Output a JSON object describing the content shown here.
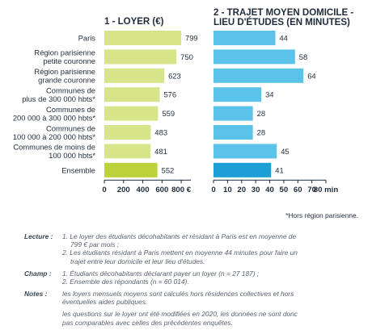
{
  "chart_data": [
    {
      "type": "bar",
      "orientation": "horizontal",
      "title": "1 - LOYER (€)",
      "categories": [
        "Paris",
        "Région parisienne petite couronne",
        "Région parisienne grande couronne",
        "Communes de plus de 300 000 hbts*",
        "Communes de 200 000 à 300 000 hbts*",
        "Communes de 100 000 à 200 000 hbts*",
        "Communes de moins de 100 000 hbts*",
        "Ensemble"
      ],
      "values": [
        799,
        750,
        623,
        576,
        559,
        483,
        481,
        552
      ],
      "xlim": [
        0,
        900
      ],
      "ticks": [
        "0",
        "200",
        "400",
        "600",
        "800 €"
      ],
      "tick_values": [
        0,
        200,
        400,
        600,
        800
      ],
      "bar_color": "#d7e48a",
      "highlight_color": "#bcd23a"
    },
    {
      "type": "bar",
      "orientation": "horizontal",
      "title": "2 - TRAJET MOYEN DOMICILE - LIEU D'ÉTUDES (EN MINUTES)",
      "categories": [
        "Paris",
        "Région parisienne petite couronne",
        "Région parisienne grande couronne",
        "Communes de plus de 300 000 hbts*",
        "Communes de 200 000 à 300 000 hbts*",
        "Communes de 100 000 à 200 000 hbts*",
        "Communes de moins de 100 000 hbts*",
        "Ensemble"
      ],
      "values": [
        44,
        58,
        64,
        34,
        28,
        28,
        45,
        41
      ],
      "xlim": [
        0,
        80
      ],
      "ticks": [
        "0",
        "10",
        "20",
        "30",
        "40",
        "50",
        "60",
        "70",
        "80 min"
      ],
      "tick_values": [
        0,
        10,
        20,
        30,
        40,
        50,
        60,
        70,
        80
      ],
      "bar_color": "#5bc3ea",
      "highlight_color": "#1d9fd6"
    }
  ],
  "labels": {
    "categories": [
      [
        "Paris"
      ],
      [
        "Région parisienne",
        "petite couronne"
      ],
      [
        "Région parisienne",
        "grande couronne"
      ],
      [
        "Communes de",
        "plus de 300 000 hbts*"
      ],
      [
        "Communes de",
        "200 000 à 300 000 hbts*"
      ],
      [
        "Communes de",
        "100 000 à 200 000 hbts*"
      ],
      [
        "Communes de moins de",
        "100 000 hbts*"
      ],
      [
        "Ensemble"
      ]
    ],
    "title_left": "1 - LOYER (€)",
    "title_right": [
      "2 - TRAJET MOYEN DOMICILE -",
      "LIEU D'ÉTUDES (EN MINUTES)"
    ]
  },
  "footnote": "*Hors région parisienne.",
  "notes": [
    {
      "key": "Lecture :",
      "lines": [
        "1. Le loyer des étudiants décohabitants et résidant à Paris est en moyenne de",
        "799 € par mois ;",
        "2. Les étudiants résidant à Paris mettent en moyenne 44 minutes pour faire un",
        "trajet entre leur domicile et leur lieu d'études."
      ]
    },
    {
      "key": "Champ :",
      "lines": [
        "1. Étudiants décohabitants déclarant payer un loyer (n = 27 187) ;",
        "2. Ensemble des répondants (n = 60 014)."
      ]
    },
    {
      "key": "Notes :",
      "lines": [
        "les loyers mensuels moyens sont calculés hors résidences collectives et hors",
        "éventuelles aides publiques.",
        "les questions sur le loyer ont été modifiées en 2020, les données ne sont donc",
        "pas comparables avec celles des précédentes enquêtes."
      ]
    }
  ]
}
